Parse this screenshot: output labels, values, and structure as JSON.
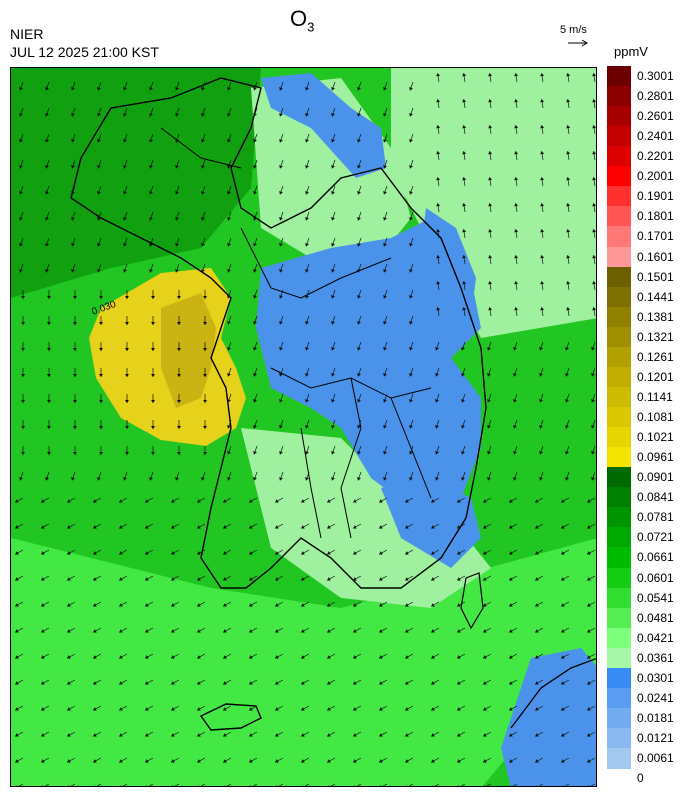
{
  "title": {
    "main": "O",
    "sub": "3"
  },
  "agency": "NIER",
  "timestamp": "JUL 12 2025 21:00 KST",
  "wind_reference": {
    "label": "5 m/s"
  },
  "unit": "ppmV",
  "colorbar": {
    "labels": [
      "0.3001",
      "0.2801",
      "0.2601",
      "0.2401",
      "0.2201",
      "0.2001",
      "0.1901",
      "0.1801",
      "0.1701",
      "0.1601",
      "0.1501",
      "0.1441",
      "0.1381",
      "0.1321",
      "0.1261",
      "0.1201",
      "0.1141",
      "0.1081",
      "0.1021",
      "0.0961",
      "0.0901",
      "0.0841",
      "0.0781",
      "0.0721",
      "0.0661",
      "0.0601",
      "0.0541",
      "0.0481",
      "0.0421",
      "0.0361",
      "0.0301",
      "0.0241",
      "0.0181",
      "0.0121",
      "0.0061",
      "0"
    ],
    "colors": [
      "#6b0000",
      "#8c0000",
      "#a80000",
      "#c20000",
      "#dd0000",
      "#ff0000",
      "#ff3030",
      "#ff5555",
      "#ff7777",
      "#ff9999",
      "#6b5f00",
      "#7d7000",
      "#8f8000",
      "#a09000",
      "#b0a000",
      "#bfae00",
      "#ccbb00",
      "#d9c800",
      "#e6d600",
      "#f2e400",
      "#006a00",
      "#008000",
      "#009500",
      "#00aa00",
      "#00bc00",
      "#14cc14",
      "#30dd30",
      "#55ee55",
      "#7dff7d",
      "#a8f7a8",
      "#3a8cf5",
      "#5a9cf0",
      "#72abef",
      "#8ab9ef",
      "#a3c8ee"
    ]
  },
  "map_colors": {
    "background": "#22c622",
    "low": "#4b93ea",
    "light": "#9ff09f",
    "bright": "#44e844",
    "dark": "#10a010",
    "high": "#e6d21a",
    "high_core": "#c9b414"
  },
  "contour_label": "0.030"
}
